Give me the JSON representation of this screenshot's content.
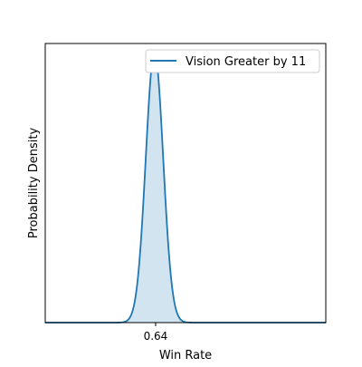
{
  "chart_data": {
    "type": "area",
    "title": "",
    "xlabel": "Win Rate",
    "ylabel": "Probability Density",
    "xlim": [
      0.592,
      0.714
    ],
    "ylim": [
      0,
      1.0
    ],
    "x_ticks": [
      0.64
    ],
    "x_tick_labels": [
      "0.64"
    ],
    "y_ticks_shown": false,
    "grid": false,
    "legend_position": "upper right",
    "series": [
      {
        "name": "Vision Greater by 11",
        "distribution": "normal",
        "mean": 0.6395,
        "std": 0.0038,
        "peak_density_fraction": 0.97,
        "line_color": "#1f77b4",
        "fill_color": "#1f77b4",
        "fill_opacity": 0.2
      }
    ]
  }
}
